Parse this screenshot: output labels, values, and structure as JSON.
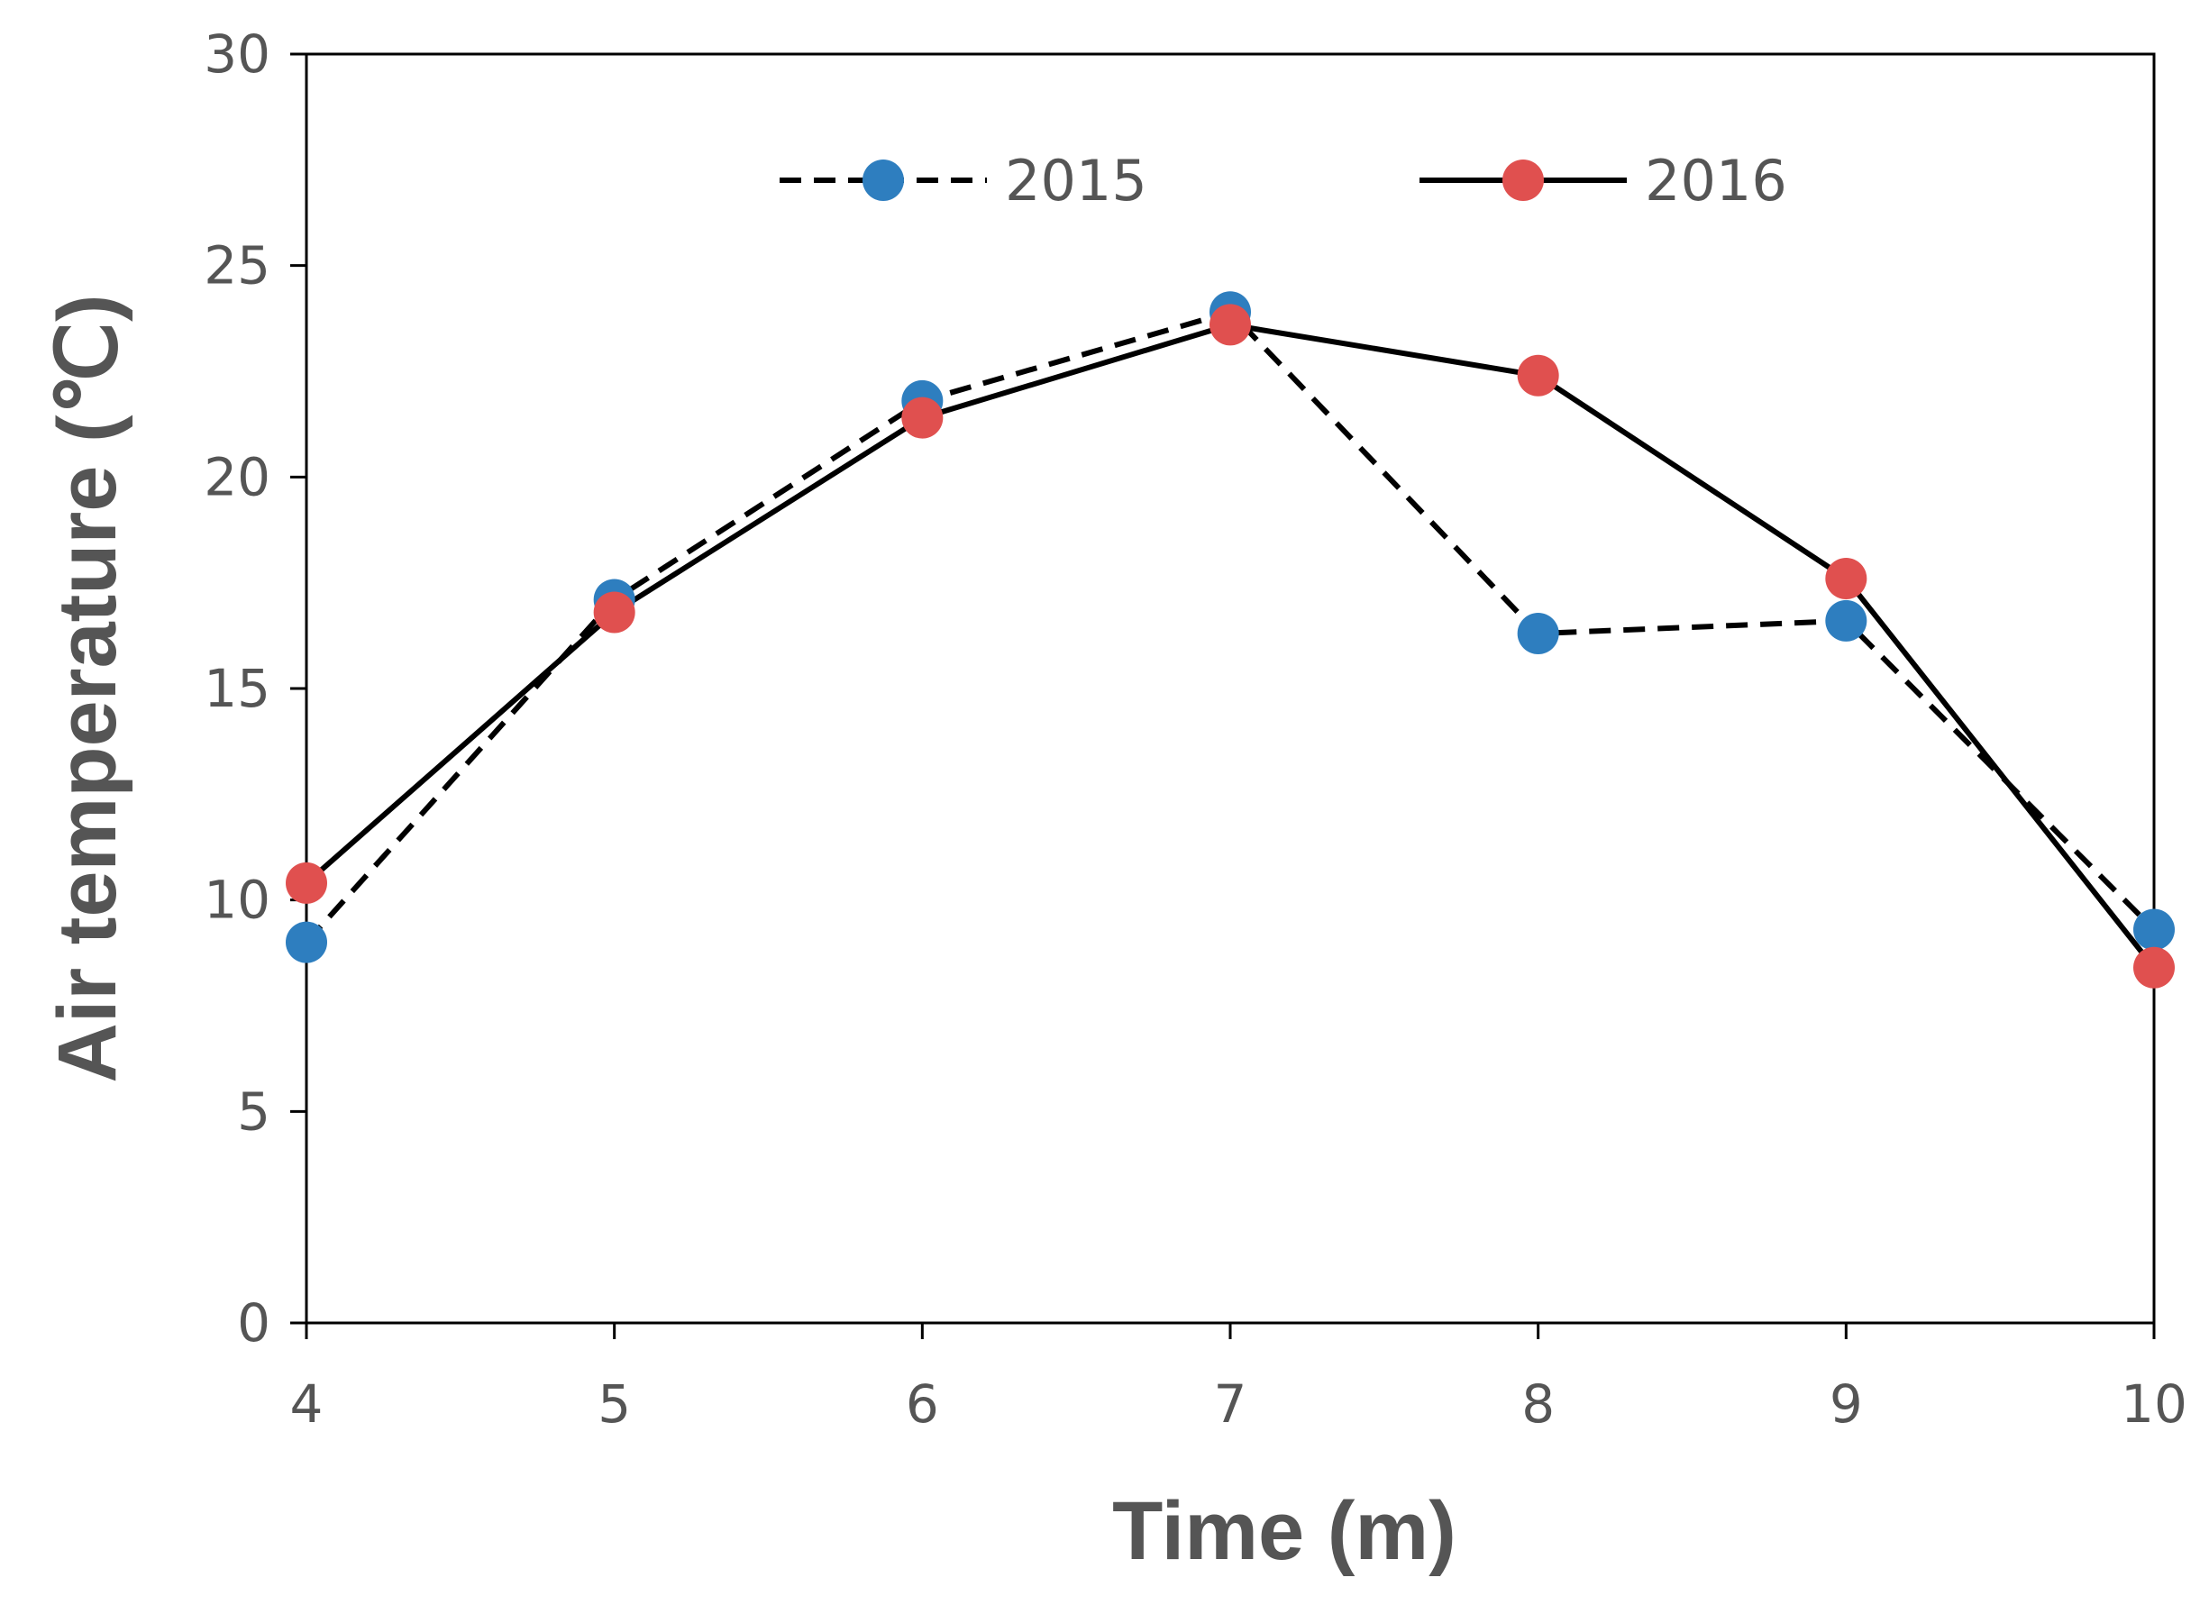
{
  "chart_data": {
    "type": "line",
    "title": "",
    "xlabel": "Time (m)",
    "ylabel": "Air temperature (℃)",
    "x": [
      4,
      5,
      6,
      7,
      8,
      9,
      10
    ],
    "x_ticks": [
      "4",
      "5",
      "6",
      "7",
      "8",
      "9",
      "10"
    ],
    "y_ticks": [
      "0",
      "5",
      "10",
      "15",
      "20",
      "25",
      "30"
    ],
    "xlim": [
      4,
      10
    ],
    "ylim": [
      0,
      30
    ],
    "grid": false,
    "legend_position": "top",
    "series": [
      {
        "name": "2015",
        "values": [
          9.0,
          17.1,
          21.8,
          23.9,
          16.3,
          16.6,
          9.3
        ],
        "line_style": "dashed",
        "line_color": "#000000",
        "marker_color": "#2e7ebf"
      },
      {
        "name": "2016",
        "values": [
          10.4,
          16.8,
          21.4,
          23.6,
          22.4,
          17.6,
          8.4
        ],
        "line_style": "solid",
        "line_color": "#000000",
        "marker_color": "#e0504f"
      }
    ]
  }
}
